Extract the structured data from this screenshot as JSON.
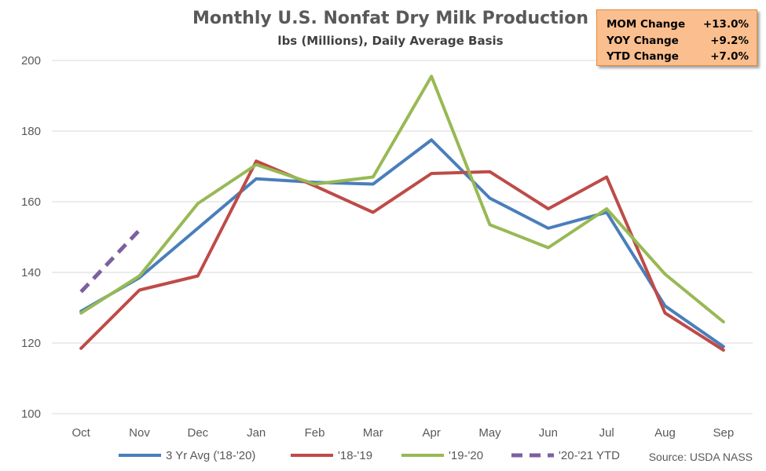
{
  "chart_data": {
    "type": "line",
    "title": "Monthly U.S. Nonfat Dry Milk Production",
    "subtitle": "lbs (Millions), Daily Average Basis",
    "categories": [
      "Oct",
      "Nov",
      "Dec",
      "Jan",
      "Feb",
      "Mar",
      "Apr",
      "May",
      "Jun",
      "Jul",
      "Aug",
      "Sep"
    ],
    "ylim": [
      100,
      200
    ],
    "yticks": [
      "100",
      "120",
      "140",
      "160",
      "180",
      "200"
    ],
    "grid": true,
    "legend_position": "bottom",
    "series": [
      {
        "name": "3 Yr Avg ('18-'20)",
        "color": "#4a7ebb",
        "style": "solid",
        "values": [
          129,
          138.5,
          152.5,
          166.5,
          165.5,
          165,
          177.5,
          161,
          152.5,
          157,
          130.5,
          119
        ]
      },
      {
        "name": "'18-'19",
        "color": "#be4b48",
        "style": "solid",
        "values": [
          118.5,
          135,
          139,
          171.5,
          164.5,
          157,
          168,
          168.5,
          158,
          167,
          128.5,
          118
        ]
      },
      {
        "name": "'19-'20",
        "color": "#98b954",
        "style": "solid",
        "values": [
          128.5,
          139,
          159.5,
          170.5,
          165,
          167,
          195.5,
          153.5,
          147,
          158,
          139.5,
          126
        ]
      },
      {
        "name": "'20-'21 YTD",
        "color": "#7d60a0",
        "style": "dashed",
        "values": [
          134.5,
          152,
          null,
          null,
          null,
          null,
          null,
          null,
          null,
          null,
          null,
          null
        ]
      }
    ],
    "source": "Source: USDA NASS"
  },
  "stats": [
    {
      "label": "MOM Change",
      "value": "+13.0%"
    },
    {
      "label": "YOY Change",
      "value": "+9.2%"
    },
    {
      "label": "YTD Change",
      "value": "+7.0%"
    }
  ]
}
